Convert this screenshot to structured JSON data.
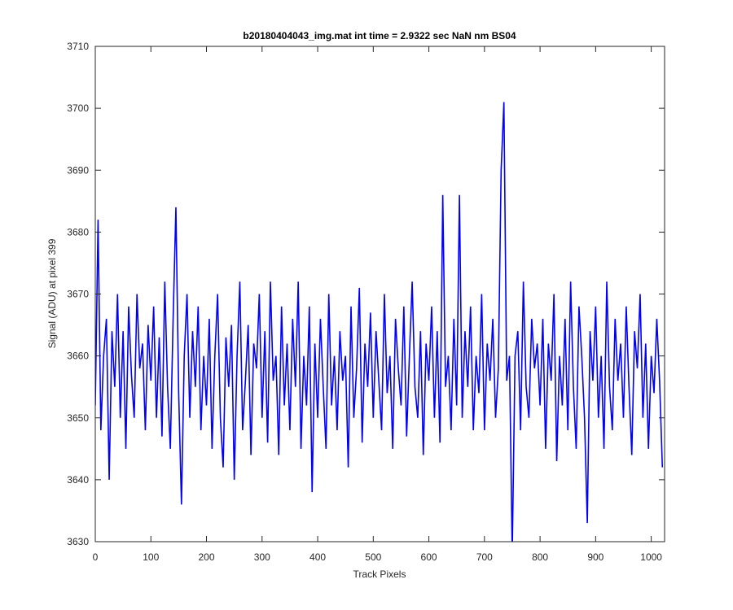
{
  "chart_data": {
    "type": "line",
    "title": "b20180404043_img.mat int time = 2.9322 sec  NaN nm BS04",
    "x_label": "Track Pixels",
    "y_label": "Signal (ADU) at pixel 399",
    "xlim": [
      0,
      1024
    ],
    "ylim": [
      3630,
      3710
    ],
    "xticks": [
      0,
      100,
      200,
      300,
      400,
      500,
      600,
      700,
      800,
      900,
      1000
    ],
    "yticks": [
      3630,
      3640,
      3650,
      3660,
      3670,
      3680,
      3690,
      3700,
      3710
    ],
    "grid": false,
    "series": [
      {
        "color": "#0000ff",
        "x": [
          0,
          5,
          10,
          15,
          20,
          25,
          30,
          35,
          40,
          45,
          50,
          55,
          60,
          65,
          70,
          75,
          80,
          85,
          90,
          95,
          100,
          105,
          110,
          115,
          120,
          125,
          130,
          135,
          140,
          145,
          150,
          155,
          160,
          165,
          170,
          175,
          180,
          185,
          190,
          195,
          200,
          205,
          210,
          215,
          220,
          225,
          230,
          235,
          240,
          245,
          250,
          255,
          260,
          265,
          270,
          275,
          280,
          285,
          290,
          295,
          300,
          305,
          310,
          315,
          320,
          325,
          330,
          335,
          340,
          345,
          350,
          355,
          360,
          365,
          370,
          375,
          380,
          385,
          390,
          395,
          400,
          405,
          410,
          415,
          420,
          425,
          430,
          435,
          440,
          445,
          450,
          455,
          460,
          465,
          470,
          475,
          480,
          485,
          490,
          495,
          500,
          505,
          510,
          515,
          520,
          525,
          530,
          535,
          540,
          545,
          550,
          555,
          560,
          565,
          570,
          575,
          580,
          585,
          590,
          595,
          600,
          605,
          610,
          615,
          620,
          625,
          630,
          635,
          640,
          645,
          650,
          655,
          660,
          665,
          670,
          675,
          680,
          685,
          690,
          695,
          700,
          705,
          710,
          715,
          720,
          725,
          730,
          735,
          740,
          745,
          750,
          755,
          760,
          765,
          770,
          775,
          780,
          785,
          790,
          795,
          800,
          805,
          810,
          815,
          820,
          825,
          830,
          835,
          840,
          845,
          850,
          855,
          860,
          865,
          870,
          875,
          880,
          885,
          890,
          895,
          900,
          905,
          910,
          915,
          920,
          925,
          930,
          935,
          940,
          945,
          950,
          955,
          960,
          965,
          970,
          975,
          980,
          985,
          990,
          995,
          1000,
          1005,
          1010,
          1015,
          1020
        ],
        "values": [
          3652,
          3682,
          3648,
          3660,
          3666,
          3640,
          3664,
          3655,
          3670,
          3650,
          3664,
          3645,
          3668,
          3657,
          3650,
          3670,
          3658,
          3662,
          3648,
          3665,
          3656,
          3668,
          3650,
          3663,
          3647,
          3672,
          3655,
          3645,
          3666,
          3684,
          3654,
          3636,
          3660,
          3670,
          3650,
          3664,
          3655,
          3668,
          3648,
          3660,
          3652,
          3666,
          3645,
          3660,
          3670,
          3650,
          3642,
          3663,
          3655,
          3665,
          3640,
          3660,
          3672,
          3648,
          3656,
          3665,
          3644,
          3662,
          3658,
          3670,
          3650,
          3664,
          3646,
          3672,
          3656,
          3660,
          3644,
          3668,
          3652,
          3662,
          3648,
          3666,
          3655,
          3672,
          3645,
          3660,
          3652,
          3668,
          3638,
          3662,
          3650,
          3666,
          3655,
          3645,
          3670,
          3652,
          3660,
          3648,
          3664,
          3656,
          3660,
          3642,
          3668,
          3650,
          3658,
          3671,
          3646,
          3662,
          3655,
          3667,
          3650,
          3664,
          3656,
          3648,
          3670,
          3654,
          3660,
          3645,
          3666,
          3658,
          3652,
          3668,
          3647,
          3660,
          3672,
          3655,
          3650,
          3664,
          3644,
          3662,
          3656,
          3668,
          3650,
          3664,
          3646,
          3686,
          3655,
          3660,
          3648,
          3666,
          3652,
          3686,
          3650,
          3664,
          3655,
          3668,
          3648,
          3660,
          3654,
          3670,
          3648,
          3662,
          3656,
          3666,
          3650,
          3658,
          3690,
          3701,
          3656,
          3660,
          3628,
          3660,
          3664,
          3648,
          3672,
          3655,
          3650,
          3666,
          3658,
          3662,
          3652,
          3666,
          3645,
          3662,
          3656,
          3670,
          3643,
          3660,
          3652,
          3666,
          3648,
          3672,
          3655,
          3645,
          3668,
          3660,
          3650,
          3633,
          3664,
          3656,
          3668,
          3650,
          3660,
          3645,
          3672,
          3655,
          3648,
          3666,
          3656,
          3662,
          3650,
          3668,
          3655,
          3644,
          3664,
          3658,
          3670,
          3650,
          3662,
          3645,
          3660,
          3654,
          3666,
          3656,
          3642
        ]
      }
    ]
  }
}
